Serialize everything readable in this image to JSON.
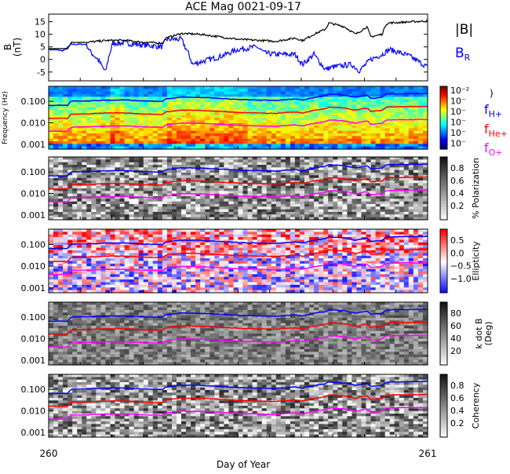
{
  "title": "ACE Mag 0021-09-17",
  "colors": {
    "B_total": "#000000",
    "B_R": "#0000ff",
    "f_H": "#0000ff",
    "f_He": "#ff0000",
    "f_O": "#ff00ff"
  },
  "chart_data": [
    {
      "type": "line",
      "title": "ACE Mag 0021-09-17",
      "ylabel": "B (nT)",
      "ylim": [
        -8.5,
        18
      ],
      "yticks": [
        "15",
        "10",
        "5",
        "0",
        "-5"
      ],
      "ytick_values": [
        15,
        10,
        5,
        0,
        -5
      ],
      "xlim": [
        260,
        261
      ],
      "legend": [
        "|B|",
        "B_R"
      ],
      "legend_display": {
        "B_total": "|B|",
        "B_R_main": "B",
        "B_R_sub": "R"
      },
      "legend_position": "right",
      "series": [
        {
          "name": "|B|",
          "x": [
            0,
            0.05,
            0.06,
            0.1,
            0.15,
            0.2,
            0.25,
            0.3,
            0.31,
            0.35,
            0.4,
            0.5,
            0.6,
            0.65,
            0.67,
            0.7,
            0.73,
            0.74,
            0.78,
            0.81,
            0.84,
            0.85,
            0.88,
            0.89,
            0.9,
            1
          ],
          "y": [
            4.3,
            4.3,
            6.8,
            6.8,
            7.5,
            7.6,
            6.8,
            6.5,
            8.5,
            10.3,
            10,
            8,
            7.2,
            8.5,
            7.5,
            10,
            12,
            14.5,
            13,
            10,
            13,
            9,
            10,
            14,
            14.5,
            15.3
          ]
        },
        {
          "name": "B_R",
          "x": [
            0,
            0.04,
            0.06,
            0.1,
            0.11,
            0.13,
            0.15,
            0.16,
            0.17,
            0.2,
            0.3,
            0.31,
            0.35,
            0.37,
            0.38,
            0.4,
            0.45,
            0.5,
            0.55,
            0.57,
            0.6,
            0.65,
            0.67,
            0.7,
            0.73,
            0.75,
            0.8,
            0.82,
            0.85,
            0.88,
            0.9,
            0.95,
            1
          ],
          "y": [
            4,
            3.5,
            6,
            6,
            3,
            0,
            -5,
            2,
            6.5,
            6.5,
            5,
            8,
            8,
            2,
            -2,
            -1,
            1,
            4,
            5,
            2.5,
            2,
            2,
            -2,
            2,
            -4,
            -3,
            -2,
            -4.5,
            0,
            2,
            4,
            1.5,
            -3
          ]
        }
      ]
    },
    {
      "type": "heatmap",
      "name": "power",
      "ylabel": "Frequency (Hz)",
      "yticks": [
        "0.100",
        "0.010",
        "0.001"
      ],
      "ylim": [
        0.0006,
        0.5
      ],
      "colorbar": {
        "labels": [
          "10⁻²",
          "10⁻",
          "10⁻",
          "10⁻",
          "10⁻",
          "10⁻"
        ],
        "legend": [
          {
            "main": "f",
            "sub": "H+"
          },
          {
            "main": "f",
            "sub": "He+"
          },
          {
            "main": "f",
            "sub": "O+"
          }
        ],
        "unit": ")"
      }
    },
    {
      "type": "heatmap",
      "name": "polarization",
      "yticks": [
        "0.100",
        "0.010",
        "0.001"
      ],
      "colorbar": {
        "label": "% Polarization",
        "ticks": [
          "0.8",
          "0.6",
          "0.4",
          "0.2"
        ]
      }
    },
    {
      "type": "heatmap",
      "name": "ellipticity",
      "yticks": [
        "0.100",
        "0.010",
        "0.001"
      ],
      "colorbar": {
        "label": "Ellipticity",
        "ticks": [
          "0.5",
          "0.0",
          "−0.5",
          "−1.0"
        ]
      }
    },
    {
      "type": "heatmap",
      "name": "kdotb",
      "yticks": [
        "0.100",
        "0.010",
        "0.001"
      ],
      "colorbar": {
        "label": "k dot B",
        "label2": "(Deg)",
        "ticks": [
          "80",
          "60",
          "40",
          "20"
        ]
      }
    },
    {
      "type": "heatmap",
      "name": "coherency",
      "yticks": [
        "0.100",
        "0.010",
        "0.001"
      ],
      "colorbar": {
        "label": "Coherency",
        "ticks": [
          "0.8",
          "0.6",
          "0.4",
          "0.2"
        ]
      }
    }
  ],
  "xaxis": {
    "label": "Day of Year",
    "start": "260",
    "end": "261"
  }
}
